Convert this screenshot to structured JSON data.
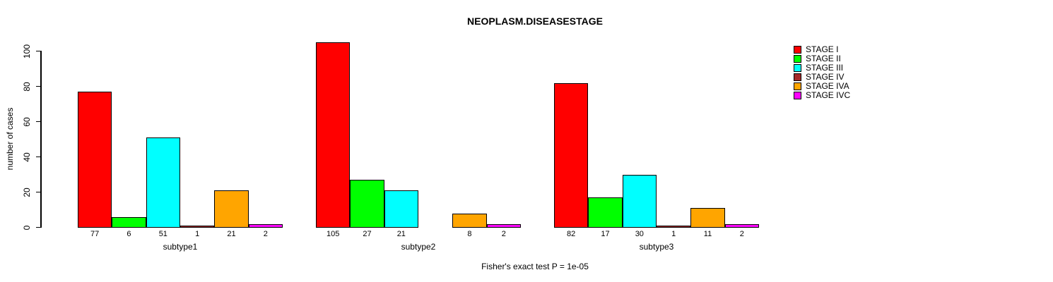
{
  "title": "NEOPLASM.DISEASESTAGE",
  "chart_data": {
    "type": "bar",
    "title": "NEOPLASM.DISEASESTAGE",
    "ylabel": "number of cases",
    "xlabel": "",
    "ylim": [
      0,
      100
    ],
    "yticks": [
      0,
      20,
      40,
      60,
      80,
      100
    ],
    "grid": false,
    "legend_position": "top-right",
    "bar_value_labels_shown": true,
    "categories": [
      "subtype1",
      "subtype2",
      "subtype3"
    ],
    "series": [
      {
        "name": "STAGE I",
        "color": "#FF0000",
        "values": [
          77,
          105,
          82
        ]
      },
      {
        "name": "STAGE II",
        "color": "#00FF00",
        "values": [
          6,
          27,
          17
        ]
      },
      {
        "name": "STAGE III",
        "color": "#00FFFF",
        "values": [
          51,
          21,
          30
        ]
      },
      {
        "name": "STAGE IV",
        "color": "#A52A2A",
        "values": [
          1,
          0,
          1
        ]
      },
      {
        "name": "STAGE IVA",
        "color": "#FFA500",
        "values": [
          21,
          8,
          11
        ]
      },
      {
        "name": "STAGE IVC",
        "color": "#FF00FF",
        "values": [
          2,
          2,
          2
        ]
      }
    ],
    "annotation": "Fisher's exact test P = 1e-05"
  }
}
